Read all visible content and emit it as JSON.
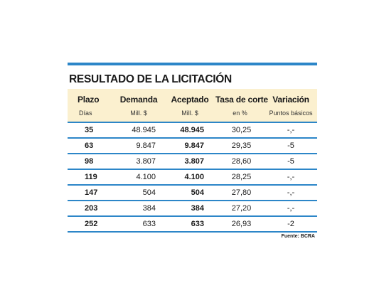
{
  "title": "RESULTADO DE LA LICITACIÓN",
  "colors": {
    "accent_rule": "#2c86c8",
    "header_fill": "#fbf0cf"
  },
  "columns": [
    {
      "label": "Plazo",
      "unit": "Días"
    },
    {
      "label": "Demanda",
      "unit": "Mill. $"
    },
    {
      "label": "Aceptado",
      "unit": "Mill. $"
    },
    {
      "label": "Tasa de corte",
      "unit": "en %"
    },
    {
      "label": "Variación",
      "unit": "Puntos básicos"
    }
  ],
  "rows": [
    {
      "plazo": "35",
      "demanda": "48.945",
      "aceptado": "48.945",
      "tasa": "30,25",
      "variacion": "-,-"
    },
    {
      "plazo": "63",
      "demanda": "9.847",
      "aceptado": "9.847",
      "tasa": "29,35",
      "variacion": "-5"
    },
    {
      "plazo": "98",
      "demanda": "3.807",
      "aceptado": "3.807",
      "tasa": "28,60",
      "variacion": "-5"
    },
    {
      "plazo": "119",
      "demanda": "4.100",
      "aceptado": "4.100",
      "tasa": "28,25",
      "variacion": "-,-"
    },
    {
      "plazo": "147",
      "demanda": "504",
      "aceptado": "504",
      "tasa": "27,80",
      "variacion": "-,-"
    },
    {
      "plazo": "203",
      "demanda": "384",
      "aceptado": "384",
      "tasa": "27,20",
      "variacion": "-,-"
    },
    {
      "plazo": "252",
      "demanda": "633",
      "aceptado": "633",
      "tasa": "26,93",
      "variacion": "-2"
    }
  ],
  "source": "Fuente: BCRA"
}
